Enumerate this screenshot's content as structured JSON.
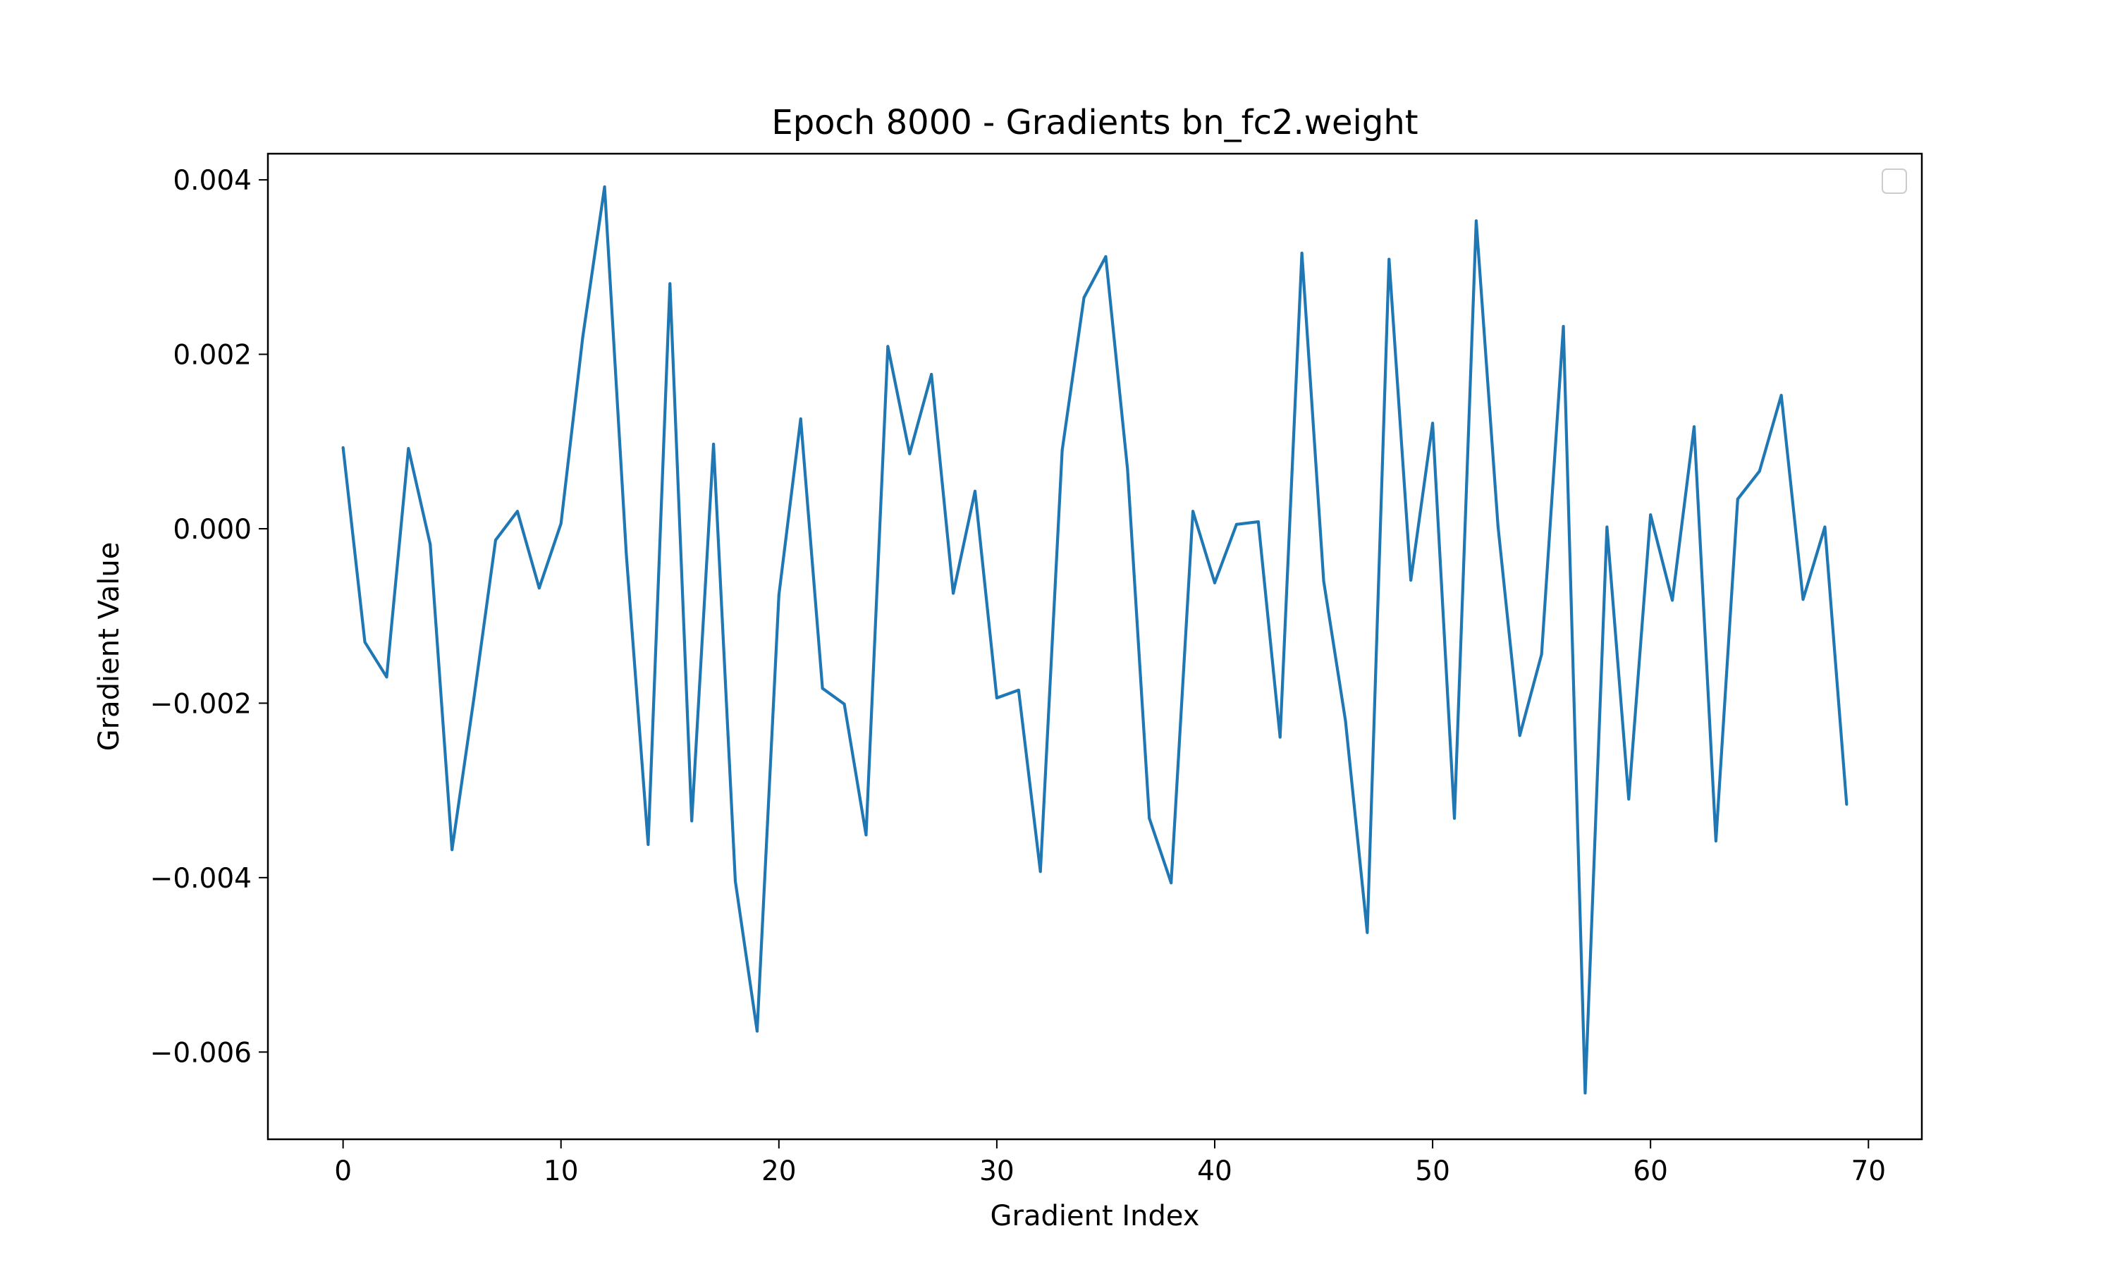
{
  "chart_data": {
    "type": "line",
    "title": "Epoch 8000 - Gradients bn_fc2.weight",
    "xlabel": "Gradient Index",
    "ylabel": "Gradient Value",
    "xlim": [
      -3.45,
      72.45
    ],
    "ylim": [
      -0.007,
      0.0043
    ],
    "xticks": [
      0,
      10,
      20,
      30,
      40,
      50,
      60,
      70
    ],
    "xtick_labels": [
      "0",
      "10",
      "20",
      "30",
      "40",
      "50",
      "60",
      "70"
    ],
    "yticks": [
      0.004,
      0.002,
      0.0,
      -0.002,
      -0.004,
      -0.006
    ],
    "ytick_labels": [
      "0.004",
      "0.002",
      "0.000",
      "−0.002",
      "−0.004",
      "−0.006"
    ],
    "grid": false,
    "legend": {
      "placement": "top-right",
      "entries": []
    },
    "series": [
      {
        "color": "#1f77b4",
        "x": [
          0,
          1,
          2,
          3,
          4,
          5,
          6,
          7,
          8,
          9,
          10,
          11,
          12,
          13,
          14,
          15,
          16,
          17,
          18,
          19,
          20,
          21,
          22,
          23,
          24,
          25,
          26,
          27,
          28,
          29,
          30,
          31,
          32,
          33,
          34,
          35,
          36,
          37,
          38,
          39,
          40,
          41,
          42,
          43,
          44,
          45,
          46,
          47,
          48,
          49,
          50,
          51,
          52,
          53,
          54,
          55,
          56,
          57,
          58,
          59,
          60,
          61,
          62,
          63,
          64,
          65,
          66,
          67,
          68,
          69
        ],
        "values": [
          0.00093,
          -0.0013,
          -0.0017,
          0.00092,
          -0.00018,
          -0.00368,
          -0.00195,
          -0.00013,
          0.0002,
          -0.00068,
          6e-05,
          0.0022,
          0.00392,
          -0.0003,
          -0.00362,
          0.00281,
          -0.00335,
          0.00097,
          -0.00404,
          -0.00576,
          -0.00076,
          0.00126,
          -0.00183,
          -0.00201,
          -0.00351,
          0.00209,
          0.00086,
          0.00177,
          -0.00074,
          0.00043,
          -0.00194,
          -0.00185,
          -0.00393,
          0.0009,
          0.00265,
          0.00312,
          0.00068,
          -0.00332,
          -0.00406,
          0.0002,
          -0.00062,
          5e-05,
          8e-05,
          -0.00239,
          0.00316,
          -0.0006,
          -0.0022,
          -0.00463,
          0.00309,
          -0.00059,
          0.00121,
          -0.00332,
          0.00353,
          3e-05,
          -0.00237,
          -0.00144,
          0.00232,
          -0.00647,
          2e-05,
          -0.0031,
          0.00016,
          -0.00082,
          0.00117,
          -0.00358,
          0.00034,
          0.00066,
          0.00153,
          -0.00081,
          2e-05,
          -0.00316
        ]
      }
    ]
  }
}
